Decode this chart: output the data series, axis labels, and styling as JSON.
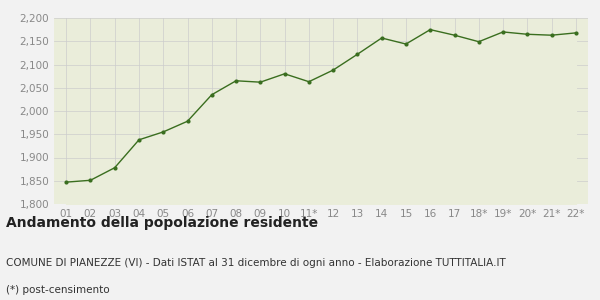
{
  "x_labels": [
    "01",
    "02",
    "03",
    "04",
    "05",
    "06",
    "07",
    "08",
    "09",
    "10",
    "11*",
    "12",
    "13",
    "14",
    "15",
    "16",
    "17",
    "18*",
    "19*",
    "20*",
    "21*",
    "22*"
  ],
  "y_values": [
    1847,
    1851,
    1878,
    1938,
    1955,
    1978,
    2035,
    2065,
    2062,
    2080,
    2063,
    2088,
    2122,
    2157,
    2144,
    2175,
    2163,
    2149,
    2170,
    2165,
    2163,
    2168
  ],
  "line_color": "#3a6e1f",
  "fill_color": "#eaedda",
  "marker_color": "#3a6e1f",
  "plot_bg_color": "#eaedda",
  "fig_bg_color": "#f2f2f2",
  "grid_color": "#cccccc",
  "ylim": [
    1800,
    2200
  ],
  "yticks": [
    1800,
    1850,
    1900,
    1950,
    2000,
    2050,
    2100,
    2150,
    2200
  ],
  "title": "Andamento della popolazione residente",
  "subtitle": "COMUNE DI PIANEZZE (VI) - Dati ISTAT al 31 dicembre di ogni anno - Elaborazione TUTTITALIA.IT",
  "footnote": "(*) post-censimento",
  "title_fontsize": 10,
  "subtitle_fontsize": 7.5,
  "tick_fontsize": 7.5,
  "tick_color": "#888888"
}
